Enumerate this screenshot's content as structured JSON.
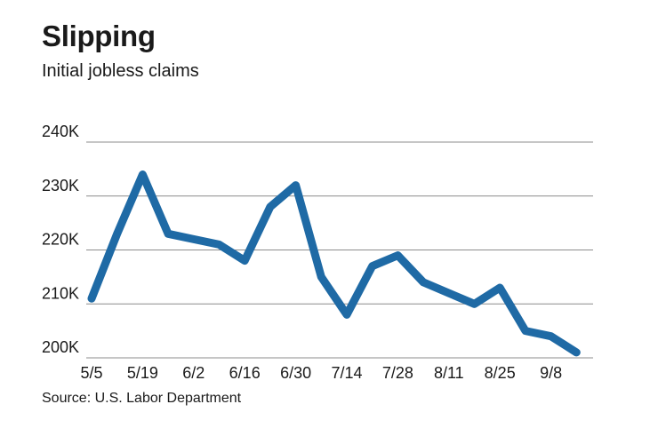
{
  "header": {
    "title": "Slipping",
    "subtitle": "Initial jobless claims"
  },
  "footer": {
    "source": "Source: U.S. Labor Department"
  },
  "colors": {
    "line": "#1f6aa5",
    "grid": "#8c8c8c",
    "text": "#1a1a1a"
  },
  "chart_data": {
    "type": "line",
    "title": "Slipping",
    "subtitle": "Initial jobless claims",
    "xlabel": "",
    "ylabel": "",
    "x_tick_labels": [
      "5/5",
      "5/19",
      "6/2",
      "6/16",
      "6/30",
      "7/14",
      "7/28",
      "8/11",
      "8/25",
      "9/8"
    ],
    "y_tick_values": [
      200000,
      210000,
      220000,
      230000,
      240000
    ],
    "y_tick_labels": [
      "200K",
      "210K",
      "220K",
      "230K",
      "240K"
    ],
    "ylim": [
      200000,
      240000
    ],
    "grid": true,
    "legend": "none",
    "series": [
      {
        "x": [
          "5/5",
          "5/12",
          "5/19",
          "5/26",
          "6/2",
          "6/9",
          "6/16",
          "6/23",
          "6/30",
          "7/7",
          "7/14",
          "7/21",
          "7/28",
          "8/4",
          "8/11",
          "8/18",
          "8/25",
          "9/1",
          "9/8",
          "9/15"
        ],
        "values": [
          211000,
          223000,
          234000,
          223000,
          222000,
          221000,
          218000,
          228000,
          232000,
          215000,
          208000,
          217000,
          219000,
          214000,
          212000,
          210000,
          213000,
          205000,
          204000,
          201000
        ]
      }
    ]
  }
}
